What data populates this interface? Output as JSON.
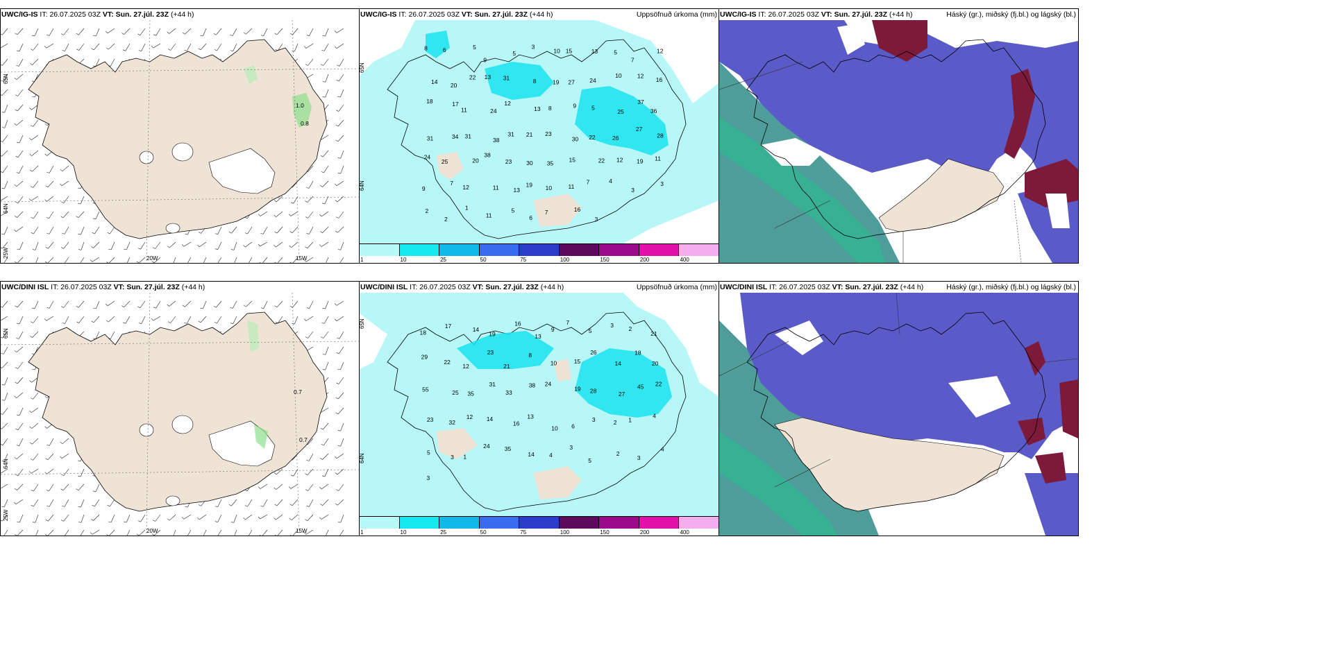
{
  "rows": [
    {
      "model": "UWC/IG-IS",
      "it_label": "IT:",
      "it_value": "26.07.2025 03Z",
      "vt_label": "VT: Sun. 27.júl. 23Z",
      "lead": "(+44 h)",
      "wind_panel": {
        "lat_labels": [
          "65N",
          "64N"
        ],
        "lon_labels": [
          "25W",
          "20W",
          "15W"
        ],
        "values": [
          "1.0",
          "0.8"
        ]
      },
      "precip_panel": {
        "title_right": "Uppsöfnuð úrkoma (mm)",
        "lat_labels": [
          "65N",
          "64N"
        ],
        "values": [
          "8",
          "6",
          "5",
          "9",
          "5",
          "3",
          "10",
          "15",
          "13",
          "5",
          "7",
          "12",
          "14",
          "20",
          "22",
          "13",
          "31",
          "8",
          "19",
          "27",
          "24",
          "10",
          "12",
          "16",
          "18",
          "17",
          "11",
          "24",
          "12",
          "13",
          "8",
          "9",
          "5",
          "25",
          "37",
          "36",
          "31",
          "34",
          "31",
          "38",
          "31",
          "21",
          "23",
          "30",
          "22",
          "26",
          "27",
          "28",
          "24",
          "25",
          "20",
          "38",
          "23",
          "30",
          "35",
          "15",
          "22",
          "12",
          "19",
          "11",
          "9",
          "7",
          "12",
          "11",
          "13",
          "19",
          "10",
          "11",
          "7",
          "4",
          "3",
          "3",
          "2",
          "2",
          "1",
          "11",
          "5",
          "6",
          "7",
          "16",
          "3"
        ]
      },
      "cloud_panel": {
        "title_right": "Háský (gr.), miðský (fj.bl.) og lágský (bl.)"
      }
    },
    {
      "model": "UWC/DINI ISL",
      "it_label": "IT:",
      "it_value": "26.07.2025 03Z",
      "vt_label": "VT: Sun. 27.júl. 23Z",
      "lead": "(+44 h)",
      "wind_panel": {
        "lat_labels": [
          "65N",
          "64N"
        ],
        "lon_labels": [
          "25W",
          "20W",
          "15W"
        ],
        "values": [
          "0.7",
          "0.7"
        ]
      },
      "precip_panel": {
        "title_right": "Uppsöfnuð úrkoma (mm)",
        "lat_labels": [
          "65N",
          "64N"
        ],
        "values": [
          "18",
          "17",
          "14",
          "19",
          "16",
          "13",
          "9",
          "7",
          "5",
          "3",
          "2",
          "21",
          "29",
          "22",
          "12",
          "23",
          "21",
          "8",
          "10",
          "15",
          "26",
          "14",
          "18",
          "20",
          "55",
          "25",
          "35",
          "31",
          "33",
          "38",
          "24",
          "19",
          "28",
          "27",
          "45",
          "22",
          "23",
          "32",
          "12",
          "14",
          "16",
          "13",
          "10",
          "6",
          "3",
          "2",
          "1",
          "4",
          "5",
          "3",
          "1",
          "24",
          "35",
          "14",
          "4",
          "3",
          "5",
          "2",
          "3",
          "4",
          "3"
        ]
      },
      "cloud_panel": {
        "title_right": "Háský (gr.), miðský (fj.bl.) og lágský (bl.)"
      }
    }
  ],
  "colorbar": {
    "labels": [
      "1",
      "10",
      "25",
      "50",
      "75",
      "100",
      "150",
      "200",
      "400"
    ],
    "colors": [
      "#b7f8f8",
      "#16e8f0",
      "#11b9e8",
      "#3a6cf0",
      "#2a3cc8",
      "#5c0a5c",
      "#9c0a8c",
      "#e010a8",
      "#f4aef0"
    ]
  },
  "colors": {
    "land": "#efe3d6",
    "precip_light": "#b8f7f7",
    "precip_mid": "#17e3ee",
    "cloud_mid": "#5a5ac8",
    "cloud_high": "#7d1a3a",
    "cloud_low": "#2f8c8a"
  }
}
